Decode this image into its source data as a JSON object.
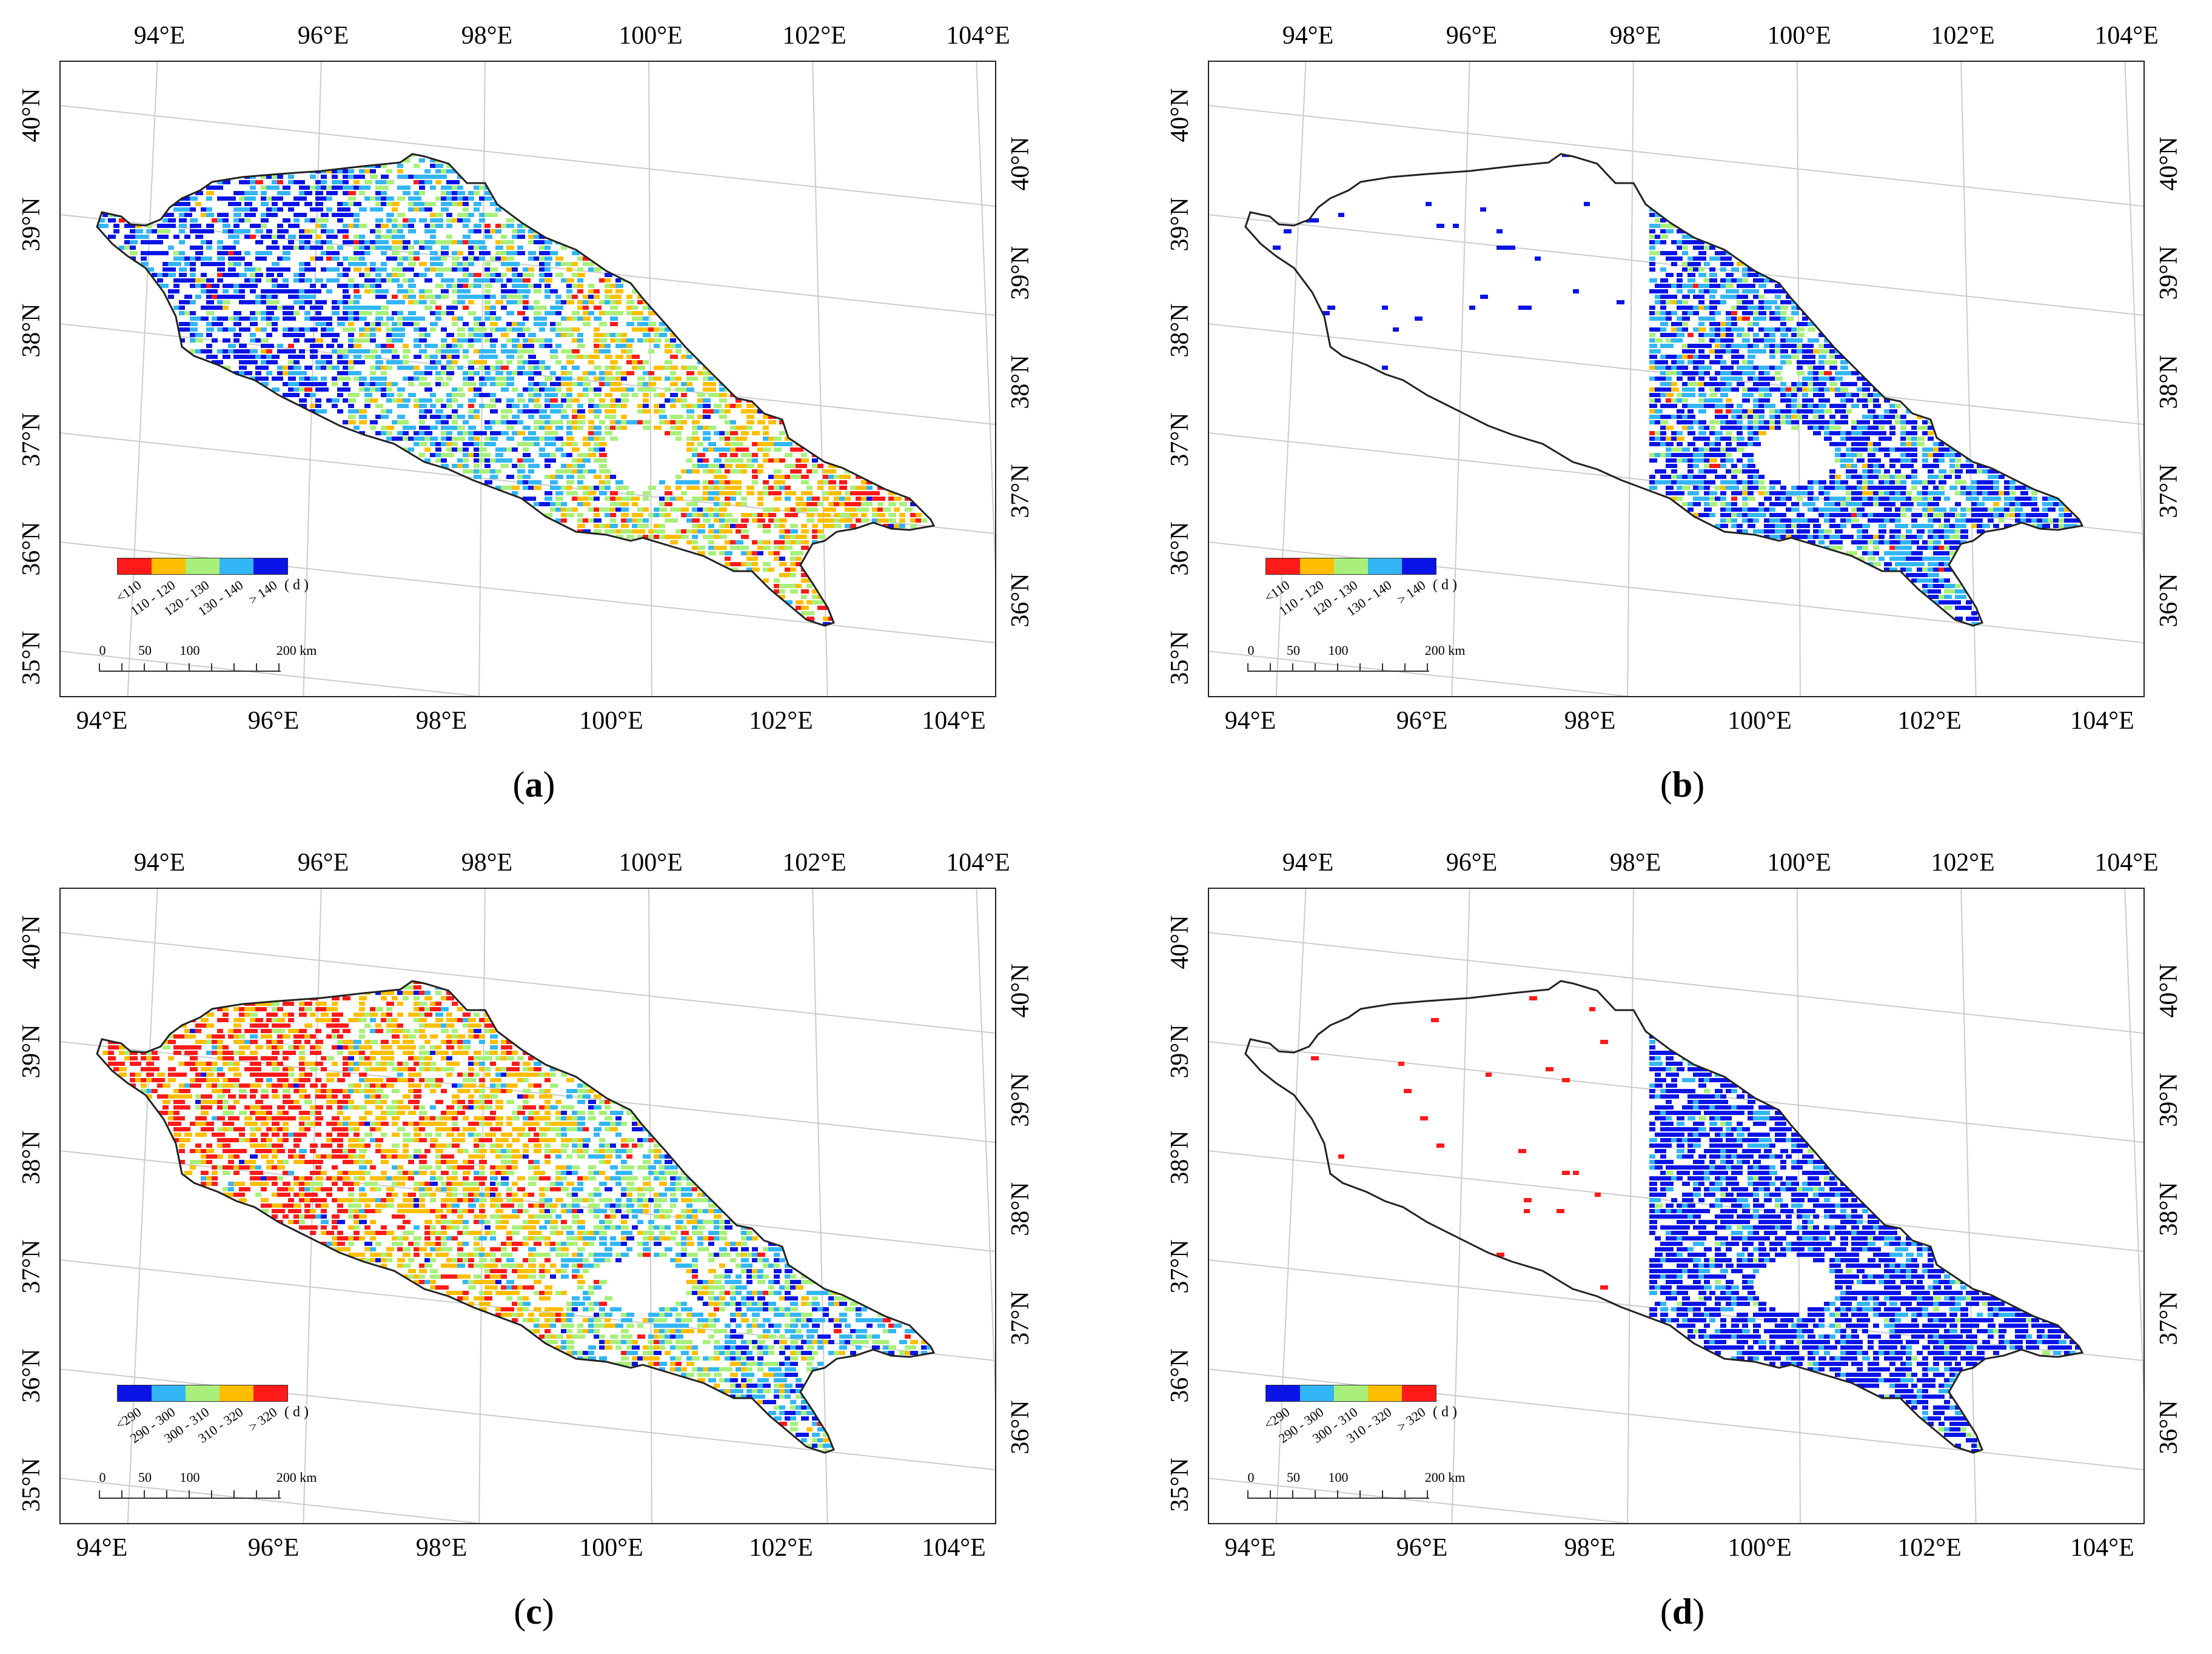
{
  "axes": {
    "top_ticks": [
      "94°E",
      "96°E",
      "98°E",
      "100°E",
      "102°E",
      "104°E"
    ],
    "bottom_ticks": [
      "94°E",
      "96°E",
      "98°E",
      "100°E",
      "102°E",
      "104°E"
    ],
    "left_ticks": [
      "40°N",
      "39°N",
      "38°N",
      "37°N",
      "36°N",
      "35°N"
    ],
    "right_ticks": [
      "40°N",
      "39°N",
      "38°N",
      "37°N",
      "36°N"
    ]
  },
  "legend_low": {
    "classes": [
      "<110",
      "110 - 120",
      "120 - 130",
      "130 - 140",
      "> 140"
    ],
    "colors": [
      "#ff1a1a",
      "#ffbf00",
      "#a8f07a",
      "#33b6f5",
      "#0a14e6"
    ],
    "unit": "( d )"
  },
  "legend_high": {
    "classes": [
      "<290",
      "290 - 300",
      "300 - 310",
      "310 - 320",
      "> 320"
    ],
    "colors": [
      "#0a14e6",
      "#33b6f5",
      "#a8f07a",
      "#ffbf00",
      "#ff1a1a"
    ],
    "unit": "( d )"
  },
  "scalebar": {
    "labels": [
      "0",
      "50",
      "100",
      "200 km"
    ]
  },
  "panels": [
    {
      "id": "a",
      "caption_open": "(",
      "caption_letter": "a",
      "caption_close": ")",
      "legend": "legend_low",
      "pattern": "mixed"
    },
    {
      "id": "b",
      "caption_open": "(",
      "caption_letter": "b",
      "caption_close": ")",
      "legend": "legend_low",
      "pattern": "east_blue"
    },
    {
      "id": "c",
      "caption_open": "(",
      "caption_letter": "c",
      "caption_close": ")",
      "legend": "legend_high",
      "pattern": "mixed_high"
    },
    {
      "id": "d",
      "caption_open": "(",
      "caption_letter": "d",
      "caption_close": ")",
      "legend": "legend_high",
      "pattern": "east_blue_high"
    }
  ]
}
